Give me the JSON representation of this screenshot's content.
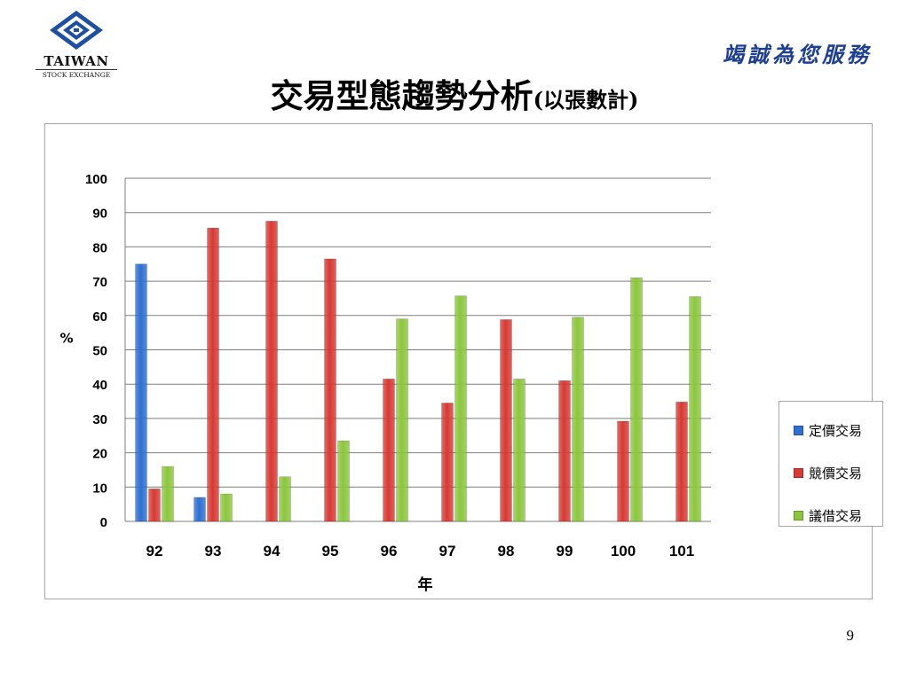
{
  "header": {
    "logo_name": "TAIWAN",
    "logo_sub": "STOCK EXCHANGE",
    "slogan": "竭誠為您服務",
    "title": "交易型態趨勢分析",
    "title_suffix": "(以張數計)"
  },
  "page_number": "9",
  "colors": {
    "fixed_price": "#2e6fd0",
    "competitive": "#d63a34",
    "negotiated": "#8cc63e"
  },
  "chart_data": {
    "type": "bar",
    "title": "",
    "xlabel": "年",
    "ylabel": "%",
    "ylim": [
      0,
      100
    ],
    "yticks": [
      0,
      10,
      20,
      30,
      40,
      50,
      60,
      70,
      80,
      90,
      100
    ],
    "grid": true,
    "legend_position": "right",
    "categories": [
      "92",
      "93",
      "94",
      "95",
      "96",
      "97",
      "98",
      "99",
      "100",
      "101"
    ],
    "series": [
      {
        "name": "定價交易",
        "color": "#2e6fd0",
        "values": [
          75,
          7,
          0,
          0,
          0,
          0,
          0,
          0,
          0,
          0
        ]
      },
      {
        "name": "競價交易",
        "color": "#d63a34",
        "values": [
          9.5,
          85.5,
          87.5,
          76.5,
          41.5,
          34.5,
          58.8,
          41,
          29.2,
          34.8
        ]
      },
      {
        "name": "議借交易",
        "color": "#8cc63e",
        "values": [
          16,
          8,
          13,
          23.5,
          59,
          65.7,
          41.5,
          59.5,
          71,
          65.5
        ]
      }
    ]
  }
}
